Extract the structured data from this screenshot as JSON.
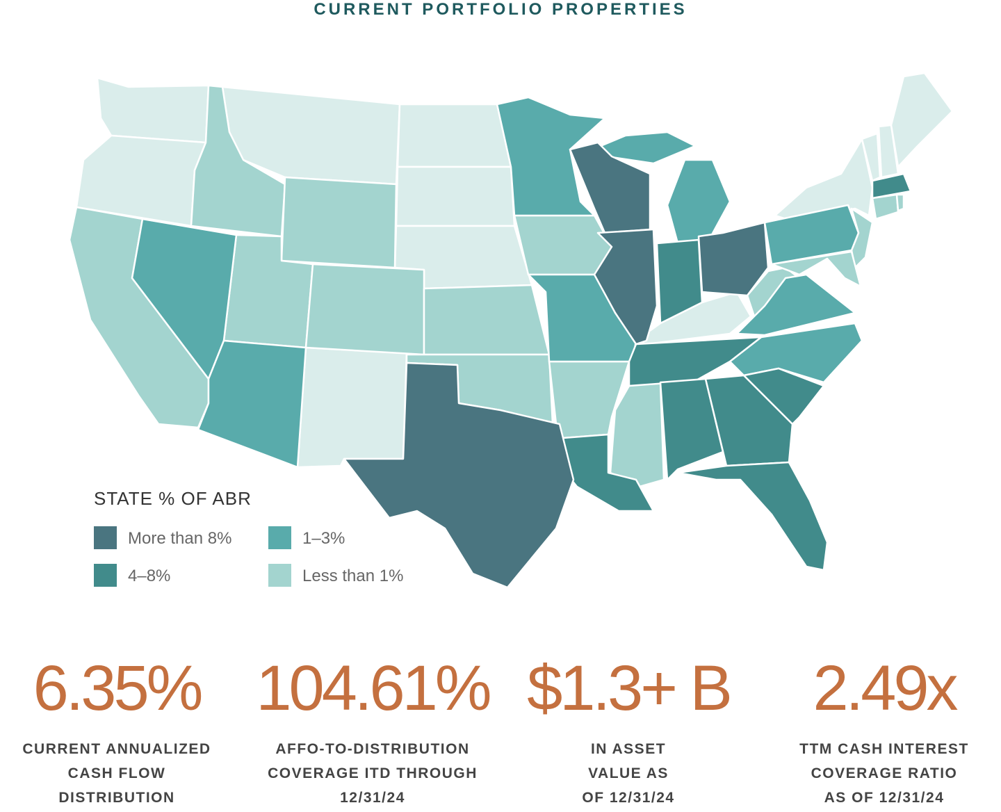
{
  "header": {
    "title": "CURRENT PORTFOLIO PROPERTIES"
  },
  "legend": {
    "title": "STATE % OF ABR",
    "items": [
      {
        "label": "More than 8%",
        "color": "#4a7580"
      },
      {
        "label": "4–8%",
        "color": "#418b8b"
      },
      {
        "label": "1–3%",
        "color": "#59abab"
      },
      {
        "label": "Less than 1%",
        "color": "#a3d4cf"
      }
    ]
  },
  "stats": [
    {
      "value": "6.35%",
      "caption": [
        "CURRENT ANNUALIZED",
        "CASH FLOW",
        "DISTRIBUTION"
      ]
    },
    {
      "value": "104.61%",
      "caption": [
        "AFFO-TO-DISTRIBUTION",
        "COVERAGE ITD THROUGH",
        "12/31/24"
      ]
    },
    {
      "value": "$1.3+ B",
      "caption": [
        "IN ASSET",
        "VALUE AS",
        "OF 12/31/24"
      ]
    },
    {
      "value": "2.49x",
      "caption": [
        "TTM CASH INTEREST",
        "COVERAGE RATIO",
        "AS OF 12/31/24"
      ]
    }
  ]
}
